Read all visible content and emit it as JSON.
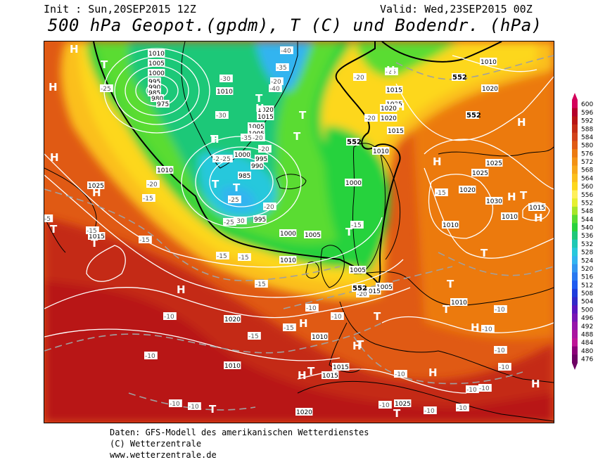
{
  "header": {
    "init": "Init : Sun,20SEP2015 12Z",
    "valid": "Valid: Wed,23SEP2015 00Z",
    "title": "500 hPa Geopot.(gpdm), T (C) und Bodendr. (hPa)"
  },
  "credits": {
    "line1": "Daten: GFS-Modell des amerikanischen Wetterdienstes",
    "line2": "(C) Wetterzentrale",
    "line3": "www.wetterzentrale.de"
  },
  "legend": {
    "labels": [
      "600",
      "596",
      "592",
      "588",
      "584",
      "580",
      "576",
      "572",
      "568",
      "564",
      "560",
      "556",
      "552",
      "548",
      "544",
      "540",
      "536",
      "532",
      "528",
      "524",
      "520",
      "516",
      "512",
      "508",
      "504",
      "500",
      "496",
      "492",
      "488",
      "484",
      "480",
      "476"
    ],
    "colors": [
      "#d4005a",
      "#b4002a",
      "#b81414",
      "#c42c14",
      "#d2421a",
      "#e05a14",
      "#ec7a10",
      "#f39214",
      "#f7a81a",
      "#fbbf1c",
      "#fdd71c",
      "#fff05a",
      "#e6f030",
      "#a6e628",
      "#5adc32",
      "#28d23c",
      "#1ec878",
      "#1ec8b4",
      "#28c8dc",
      "#32b4f0",
      "#3296f0",
      "#2878f0",
      "#1e5af0",
      "#1e3cdc",
      "#3228c8",
      "#5a14be",
      "#7814b4",
      "#9614aa",
      "#aa14a0",
      "#be1496",
      "#8c0078",
      "#6e0064"
    ]
  },
  "map_labels": {
    "isobars": [
      "1010",
      "1005",
      "1000",
      "995",
      "990",
      "985",
      "980",
      "975",
      "1010",
      "1020",
      "1015",
      "1005",
      "1005",
      "1000",
      "995",
      "990",
      "985",
      "1010",
      "1025",
      "1015",
      "1000",
      "995",
      "1000",
      "1010",
      "1005",
      "1005",
      "1020",
      "1025",
      "1030",
      "1025",
      "1020",
      "1010",
      "1015",
      "1025",
      "1020",
      "1020",
      "1015",
      "1010",
      "1010",
      "1010",
      "1015",
      "1005",
      "1010",
      "1020",
      "1015",
      "1010",
      "1025",
      "1020",
      "1015",
      "1010",
      "1015"
    ],
    "temps": [
      "-25",
      "-30",
      "-35",
      "-40",
      "-40",
      "-35",
      "-30",
      "-25",
      "-20",
      "-20",
      "-20",
      "-25",
      "-20",
      "-25",
      "-30",
      "-25",
      "-20",
      "-15",
      "-15",
      "-15",
      "-15",
      "-15",
      "-15",
      "-15",
      "-10",
      "-10",
      "-10",
      "-10",
      "-10",
      "-10",
      "-10",
      "-10",
      "-10",
      "-10",
      "-10",
      "-10",
      "-10",
      "-10",
      "-20",
      "-20",
      "-15",
      "-15",
      "-20",
      "-25",
      "-10",
      "-10",
      "-15",
      "-5"
    ],
    "geopot": [
      "552",
      "552",
      "552",
      "552"
    ],
    "highs": [
      "H",
      "H",
      "H",
      "H",
      "H",
      "H",
      "H",
      "H",
      "H",
      "H",
      "H",
      "H",
      "H",
      "H",
      "H",
      "H",
      "H",
      "H",
      "H"
    ],
    "lows": [
      "T",
      "T",
      "T",
      "T",
      "T",
      "T",
      "T",
      "T",
      "T",
      "T",
      "T",
      "T",
      "T",
      "T",
      "T",
      "T",
      "T",
      "T",
      "T",
      "T"
    ]
  }
}
